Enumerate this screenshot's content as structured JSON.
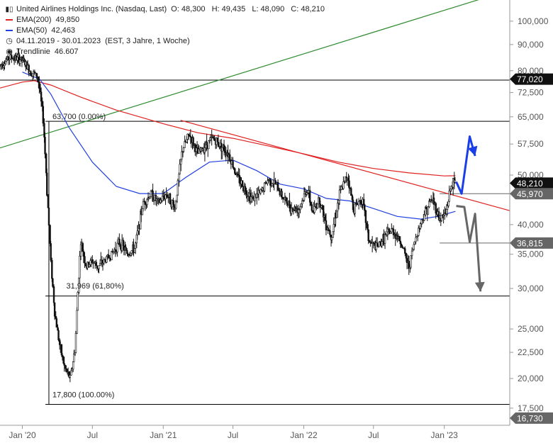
{
  "legend": {
    "title": "United Airlines Holdings Inc. (Nasdaq, Last)",
    "ohlc": {
      "o": "O: 48,300",
      "h": "H: 49,435",
      "l": "L: 48,090",
      "c": "C: 48,210"
    },
    "ema200": {
      "label": "EMA(200)",
      "value": "49,850",
      "color": "#e02020"
    },
    "ema50": {
      "label": "EMA(50)",
      "value": "42,463",
      "color": "#2040e0"
    },
    "period": "04.11.2019 - 30.01.2023",
    "period_detail": "(EST, 3 Jahre, 1 Woche)",
    "trend": {
      "label": "Trendlinie",
      "value": "46.607"
    }
  },
  "chart_data": {
    "type": "candlestick",
    "y_scale": "log",
    "ylim": [
      16.2,
      110
    ],
    "y_ticks": [
      {
        "v": 100,
        "label": "100,000"
      },
      {
        "v": 90,
        "label": "90,000"
      },
      {
        "v": 80,
        "label": "80,000"
      },
      {
        "v": 72.5,
        "label": "72,500"
      },
      {
        "v": 65,
        "label": "65,000"
      },
      {
        "v": 57.5,
        "label": "57,500"
      },
      {
        "v": 50,
        "label": "50,000"
      },
      {
        "v": 40,
        "label": "40,000"
      },
      {
        "v": 35,
        "label": "35,000"
      },
      {
        "v": 30,
        "label": "30,000"
      },
      {
        "v": 25,
        "label": "25,000"
      },
      {
        "v": 22.5,
        "label": "22,500"
      },
      {
        "v": 20,
        "label": "20,000"
      },
      {
        "v": 17.5,
        "label": "17,500"
      }
    ],
    "x_ticks": [
      {
        "date": "2020-01-01",
        "label": "Jan '20"
      },
      {
        "date": "2020-07-01",
        "label": "Jul"
      },
      {
        "date": "2021-01-01",
        "label": "Jan '21"
      },
      {
        "date": "2021-07-01",
        "label": "Jul"
      },
      {
        "date": "2022-01-01",
        "label": "Jan '22"
      },
      {
        "date": "2022-07-01",
        "label": "Jul"
      },
      {
        "date": "2023-01-01",
        "label": "Jan '23"
      }
    ],
    "x_range": [
      "2019-11-04",
      "2023-06-20"
    ],
    "price_tags": [
      {
        "v": 77.02,
        "label": "77,020",
        "color": "#111111"
      },
      {
        "v": 48.21,
        "label": "48,210",
        "color": "#111111"
      },
      {
        "v": 45.97,
        "label": "45,970",
        "color": "#666666"
      },
      {
        "v": 36.815,
        "label": "36,815",
        "color": "#666666"
      },
      {
        "v": 16.73,
        "label": "16,730",
        "color": "#666666"
      }
    ],
    "hlines": [
      {
        "v": 76.7,
        "from": "2019-11-04",
        "color": "#000000"
      },
      {
        "v": 63.7,
        "from": "2020-03-01",
        "color": "#000000"
      },
      {
        "v": 45.97,
        "from": "2022-12-20",
        "color": "#666666"
      },
      {
        "v": 36.815,
        "from": "2022-12-20",
        "color": "#666666"
      },
      {
        "v": 29.0,
        "from": "2020-03-01",
        "color": "#000000"
      },
      {
        "v": 17.8,
        "from": "2020-03-01",
        "color": "#000000"
      }
    ],
    "fib_labels": [
      {
        "v": 63.7,
        "date": "2020-03-10",
        "label": "63,700 (0.00%)"
      },
      {
        "v": 29.7,
        "date": "2020-04-15",
        "label": "31,969 (61,80%)"
      },
      {
        "v": 18.2,
        "date": "2020-03-10",
        "label": "17,800 (100.00%)"
      }
    ],
    "trendlines": [
      {
        "color": "#2e8b2e",
        "points": [
          [
            "2019-11-04",
            56.5
          ],
          [
            "2023-05-01",
            112
          ]
        ]
      },
      {
        "color": "#e02020",
        "points": [
          [
            "2021-02-15",
            64.0
          ],
          [
            "2023-06-20",
            42.6
          ]
        ]
      }
    ],
    "ema200": [
      [
        "2019-11-04",
        74.0
      ],
      [
        "2020-01-01",
        76.0
      ],
      [
        "2020-02-01",
        76.5
      ],
      [
        "2020-03-15",
        75.0
      ],
      [
        "2020-06-01",
        71.0
      ],
      [
        "2020-09-01",
        67.0
      ],
      [
        "2021-01-01",
        63.0
      ],
      [
        "2021-04-01",
        60.5
      ],
      [
        "2021-07-01",
        59.0
      ],
      [
        "2021-10-01",
        57.0
      ],
      [
        "2022-01-01",
        55.0
      ],
      [
        "2022-04-01",
        53.0
      ],
      [
        "2022-07-01",
        51.5
      ],
      [
        "2022-10-01",
        50.5
      ],
      [
        "2023-01-01",
        49.8
      ],
      [
        "2023-01-30",
        49.85
      ]
    ],
    "ema50": [
      [
        "2020-01-01",
        79.5
      ],
      [
        "2020-02-15",
        77.0
      ],
      [
        "2020-03-15",
        72.0
      ],
      [
        "2020-05-01",
        62.0
      ],
      [
        "2020-07-01",
        53.0
      ],
      [
        "2020-09-01",
        47.5
      ],
      [
        "2020-11-01",
        46.0
      ],
      [
        "2021-01-01",
        46.0
      ],
      [
        "2021-03-01",
        49.5
      ],
      [
        "2021-05-01",
        53.0
      ],
      [
        "2021-07-01",
        53.5
      ],
      [
        "2021-09-01",
        51.0
      ],
      [
        "2021-11-01",
        48.0
      ],
      [
        "2022-01-01",
        47.0
      ],
      [
        "2022-03-01",
        45.0
      ],
      [
        "2022-05-01",
        44.5
      ],
      [
        "2022-07-01",
        43.0
      ],
      [
        "2022-09-01",
        41.5
      ],
      [
        "2022-11-01",
        41.0
      ],
      [
        "2022-12-15",
        41.5
      ],
      [
        "2023-01-30",
        42.46
      ]
    ],
    "price_path": [
      [
        "2019-11-04",
        82
      ],
      [
        "2019-12-01",
        85
      ],
      [
        "2020-01-01",
        84
      ],
      [
        "2020-01-20",
        80
      ],
      [
        "2020-02-10",
        78
      ],
      [
        "2020-02-24",
        65
      ],
      [
        "2020-03-05",
        47
      ],
      [
        "2020-03-15",
        34
      ],
      [
        "2020-03-25",
        27
      ],
      [
        "2020-04-08",
        23
      ],
      [
        "2020-04-20",
        21
      ],
      [
        "2020-05-05",
        20
      ],
      [
        "2020-05-18",
        23
      ],
      [
        "2020-06-01",
        37
      ],
      [
        "2020-06-15",
        33
      ],
      [
        "2020-07-01",
        34
      ],
      [
        "2020-07-15",
        33
      ],
      [
        "2020-08-01",
        34
      ],
      [
        "2020-08-20",
        35
      ],
      [
        "2020-09-10",
        37
      ],
      [
        "2020-10-01",
        35
      ],
      [
        "2020-10-20",
        36
      ],
      [
        "2020-11-10",
        44
      ],
      [
        "2020-12-01",
        46
      ],
      [
        "2020-12-20",
        44
      ],
      [
        "2021-01-10",
        46
      ],
      [
        "2021-02-01",
        43
      ],
      [
        "2021-02-20",
        56
      ],
      [
        "2021-03-10",
        60
      ],
      [
        "2021-04-01",
        55
      ],
      [
        "2021-04-20",
        57
      ],
      [
        "2021-05-10",
        59
      ],
      [
        "2021-06-01",
        57
      ],
      [
        "2021-06-20",
        55
      ],
      [
        "2021-07-10",
        50
      ],
      [
        "2021-08-01",
        47
      ],
      [
        "2021-08-20",
        45
      ],
      [
        "2021-09-10",
        46
      ],
      [
        "2021-10-01",
        49
      ],
      [
        "2021-10-20",
        48
      ],
      [
        "2021-11-10",
        45
      ],
      [
        "2021-12-01",
        43
      ],
      [
        "2021-12-20",
        43
      ],
      [
        "2022-01-10",
        47
      ],
      [
        "2022-01-25",
        42
      ],
      [
        "2022-02-10",
        45
      ],
      [
        "2022-03-01",
        40
      ],
      [
        "2022-03-15",
        38
      ],
      [
        "2022-04-05",
        46
      ],
      [
        "2022-04-25",
        50
      ],
      [
        "2022-05-10",
        43
      ],
      [
        "2022-06-01",
        45
      ],
      [
        "2022-06-20",
        37
      ],
      [
        "2022-07-10",
        36
      ],
      [
        "2022-08-01",
        38
      ],
      [
        "2022-08-20",
        39
      ],
      [
        "2022-09-10",
        37
      ],
      [
        "2022-10-01",
        33
      ],
      [
        "2022-10-20",
        38
      ],
      [
        "2022-11-10",
        42
      ],
      [
        "2022-12-01",
        45
      ],
      [
        "2022-12-20",
        41
      ],
      [
        "2023-01-05",
        42
      ],
      [
        "2023-01-20",
        48
      ],
      [
        "2023-01-30",
        48.2
      ]
    ],
    "forecast": [
      {
        "color": "#1a3ee8",
        "points": [
          [
            "2023-02-01",
            48.5
          ],
          [
            "2023-02-15",
            45.97
          ],
          [
            "2023-03-08",
            59.5
          ],
          [
            "2023-03-22",
            54.5
          ]
        ]
      },
      {
        "color": "#666666",
        "points": [
          [
            "2023-02-01",
            43.5
          ],
          [
            "2023-02-22",
            43.3
          ],
          [
            "2023-03-08",
            37.0
          ],
          [
            "2023-03-22",
            42.0
          ],
          [
            "2023-04-05",
            29.6
          ]
        ]
      }
    ]
  }
}
